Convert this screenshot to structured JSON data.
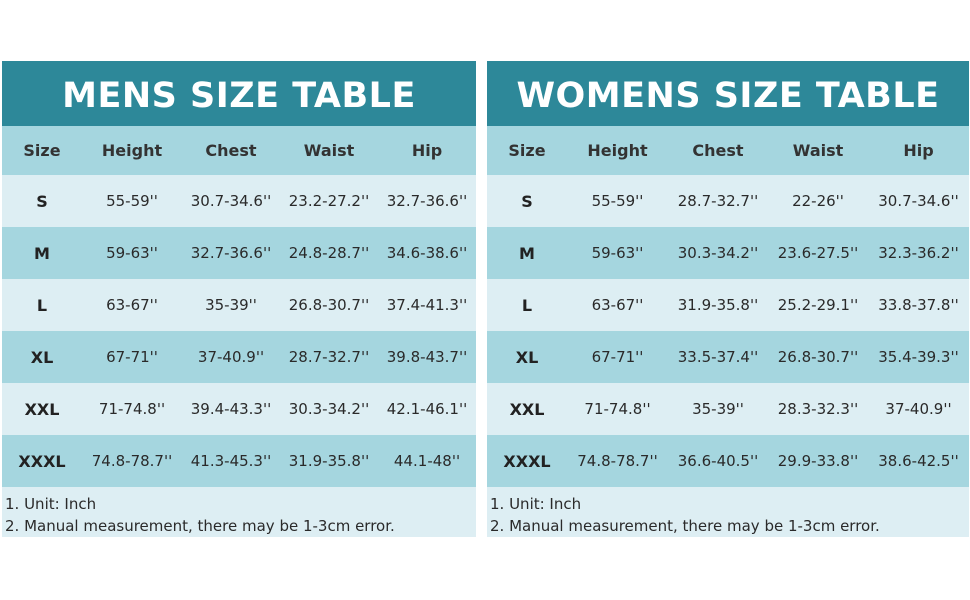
{
  "men": {
    "title": "MENS SIZE TABLE",
    "headers": [
      "Size",
      "Height",
      "Chest",
      "Waist",
      "Hip"
    ],
    "rows": [
      [
        "S",
        "55-59''",
        "30.7-34.6''",
        "23.2-27.2''",
        "32.7-36.6''"
      ],
      [
        "M",
        "59-63''",
        "32.7-36.6''",
        "24.8-28.7''",
        "34.6-38.6''"
      ],
      [
        "L",
        "63-67''",
        "35-39''",
        "26.8-30.7''",
        "37.4-41.3''"
      ],
      [
        "XL",
        "67-71''",
        "37-40.9''",
        "28.7-32.7''",
        "39.8-43.7''"
      ],
      [
        "XXL",
        "71-74.8''",
        "39.4-43.3''",
        "30.3-34.2''",
        "42.1-46.1''"
      ],
      [
        "XXXL",
        "74.8-78.7''",
        "41.3-45.3''",
        "31.9-35.8''",
        "44.1-48''"
      ]
    ],
    "notes": [
      "1. Unit: Inch",
      "2. Manual measurement, there may be 1-3cm error."
    ]
  },
  "women": {
    "title": "WOMENS SIZE TABLE",
    "headers": [
      "Size",
      "Height",
      "Chest",
      "Waist",
      "Hip"
    ],
    "rows": [
      [
        "S",
        "55-59''",
        "28.7-32.7''",
        "22-26''",
        "30.7-34.6''"
      ],
      [
        "M",
        "59-63''",
        "30.3-34.2''",
        "23.6-27.5''",
        "32.3-36.2''"
      ],
      [
        "L",
        "63-67''",
        "31.9-35.8''",
        "25.2-29.1''",
        "33.8-37.8''"
      ],
      [
        "XL",
        "67-71''",
        "33.5-37.4''",
        "26.8-30.7''",
        "35.4-39.3''"
      ],
      [
        "XXL",
        "71-74.8''",
        "35-39''",
        "28.3-32.3''",
        "37-40.9''"
      ],
      [
        "XXXL",
        "74.8-78.7''",
        "36.6-40.5''",
        "29.9-33.8''",
        "38.6-42.5''"
      ]
    ],
    "notes": [
      "1. Unit: Inch",
      "2. Manual measurement, there may be 1-3cm error."
    ]
  },
  "colors": {
    "title_bg": "#2d8899",
    "row_dark": "#a5d6df",
    "row_light": "#ddeef3"
  }
}
